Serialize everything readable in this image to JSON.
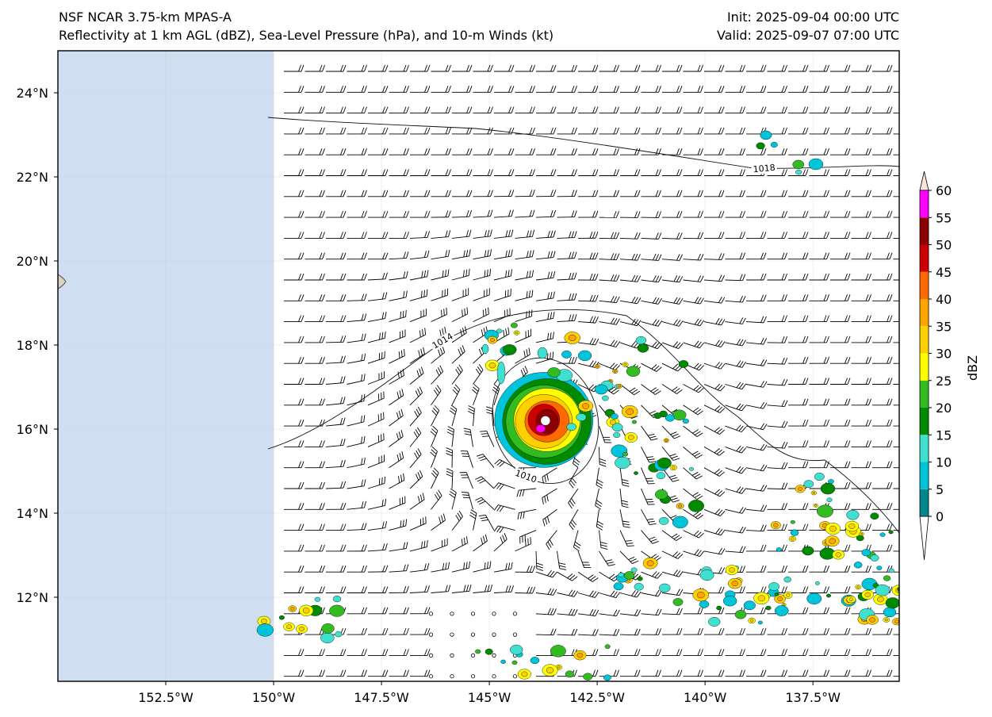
{
  "header": {
    "model": "NSF NCAR 3.75-km MPAS-A",
    "fields": "Reflectivity at 1 km AGL (dBZ), Sea-Level Pressure (hPa), and 10-m Winds (kt)",
    "init": "Init: 2025-09-04 00:00 UTC",
    "valid": "Valid: 2025-09-07 07:00 UTC"
  },
  "map": {
    "lon_range": [
      -155.0,
      -135.5
    ],
    "lat_range": [
      10.0,
      25.0
    ],
    "lon_ticks": [
      {
        "value": -152.5,
        "label": "152.5°W"
      },
      {
        "value": -150.0,
        "label": "150°W"
      },
      {
        "value": -147.5,
        "label": "147.5°W"
      },
      {
        "value": -145.0,
        "label": "145°W"
      },
      {
        "value": -142.5,
        "label": "142.5°W"
      },
      {
        "value": -140.0,
        "label": "140°W"
      },
      {
        "value": -137.5,
        "label": "137.5°W"
      }
    ],
    "lat_ticks": [
      {
        "value": 24,
        "label": "24°N"
      },
      {
        "value": 22,
        "label": "22°N"
      },
      {
        "value": 20,
        "label": "20°N"
      },
      {
        "value": 18,
        "label": "18°N"
      },
      {
        "value": 16,
        "label": "16°N"
      },
      {
        "value": 14,
        "label": "14°N"
      },
      {
        "value": 12,
        "label": "12°N"
      }
    ],
    "no_data_region": {
      "lon_min": -155.0,
      "lon_max": -150.0,
      "color": "#cfdff1"
    },
    "storm_center": {
      "lon": -143.7,
      "lat": 16.2
    },
    "isobars": [
      {
        "value": 1018,
        "label": "1018"
      },
      {
        "value": 1014,
        "label": "1014"
      },
      {
        "value": 1010,
        "label": "1010"
      }
    ]
  },
  "colorbar": {
    "label": "dBZ",
    "levels": [
      0,
      5,
      10,
      15,
      20,
      25,
      30,
      35,
      40,
      45,
      50,
      55,
      60
    ],
    "colors": [
      "#00868b",
      "#00c4d9",
      "#40e0d0",
      "#008a00",
      "#33bb22",
      "#ffff00",
      "#ffd000",
      "#ffa500",
      "#ff6a00",
      "#cc0000",
      "#8b0000",
      "#ff00ff",
      "#ffe4d8"
    ]
  }
}
